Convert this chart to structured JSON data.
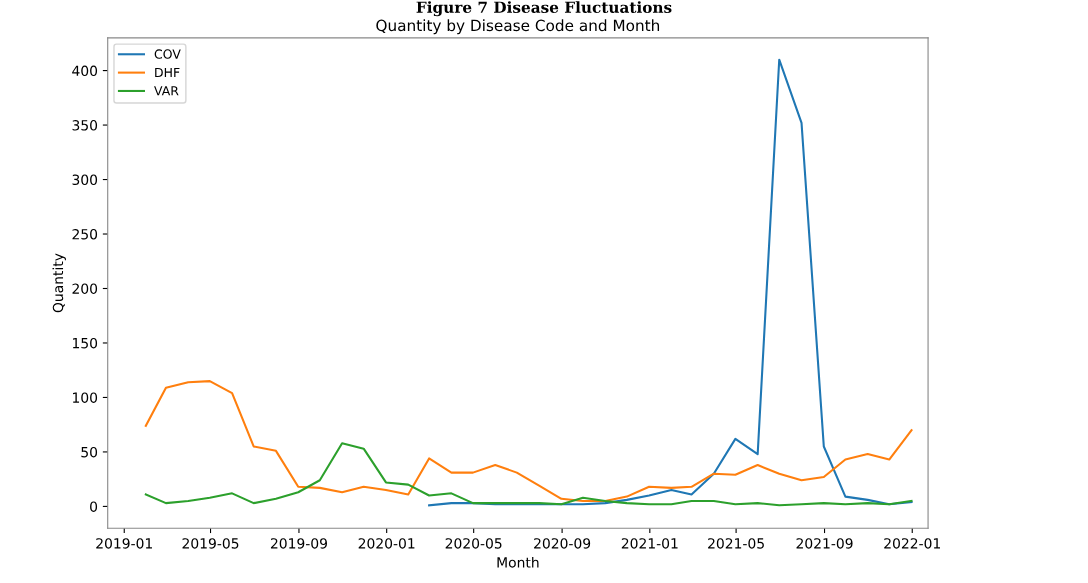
{
  "chart_data": {
    "type": "line",
    "title": "Quantity by Disease Code and Month",
    "xlabel": "Month",
    "ylabel": "Quantity",
    "annotations": [
      "Figure 7 Disease Fluctuations"
    ],
    "x": [
      "2019-01-31",
      "2019-02-28",
      "2019-03-31",
      "2019-04-30",
      "2019-05-31",
      "2019-06-30",
      "2019-07-31",
      "2019-08-31",
      "2019-09-30",
      "2019-10-31",
      "2019-11-30",
      "2019-12-31",
      "2020-01-31",
      "2020-02-29",
      "2020-03-31",
      "2020-04-30",
      "2020-05-31",
      "2020-06-30",
      "2020-07-31",
      "2020-08-31",
      "2020-09-30",
      "2020-10-31",
      "2020-11-30",
      "2020-12-31",
      "2021-01-31",
      "2021-02-28",
      "2021-03-31",
      "2021-04-30",
      "2021-05-31",
      "2021-06-30",
      "2021-07-31",
      "2021-08-31",
      "2021-09-30",
      "2021-10-31",
      "2021-11-30",
      "2021-12-31"
    ],
    "series": [
      {
        "name": "COV",
        "color": "#1f77b4",
        "values": [
          null,
          null,
          null,
          null,
          null,
          null,
          null,
          null,
          null,
          null,
          null,
          null,
          null,
          1,
          3,
          3,
          2,
          2,
          2,
          2,
          2,
          3,
          6,
          10,
          15,
          11,
          30,
          62,
          48,
          410,
          352,
          55,
          9,
          6,
          2,
          4
        ]
      },
      {
        "name": "DHF",
        "color": "#ff7f0e",
        "values": [
          74,
          109,
          114,
          115,
          104,
          55,
          51,
          18,
          17,
          13,
          18,
          15,
          11,
          44,
          31,
          31,
          38,
          31,
          19,
          7,
          5,
          5,
          9,
          18,
          17,
          18,
          30,
          29,
          38,
          30,
          24,
          27,
          43,
          48,
          43,
          70
        ]
      },
      {
        "name": "VAR",
        "color": "#2ca02c",
        "values": [
          11,
          3,
          5,
          8,
          12,
          3,
          7,
          13,
          24,
          58,
          53,
          22,
          20,
          10,
          12,
          3,
          3,
          3,
          3,
          2,
          8,
          5,
          3,
          2,
          2,
          5,
          5,
          2,
          3,
          1,
          2,
          3,
          2,
          3,
          2,
          5
        ]
      }
    ],
    "xlim": [
      "2018-12-09",
      "2022-01-23"
    ],
    "xticks": [
      "2019-01",
      "2019-05",
      "2019-09",
      "2020-01",
      "2020-05",
      "2020-09",
      "2021-01",
      "2021-05",
      "2021-09",
      "2022-01"
    ],
    "ylim": [
      -20,
      430
    ],
    "yticks": [
      0,
      50,
      100,
      150,
      200,
      250,
      300,
      350,
      400
    ],
    "grid": false,
    "legend": "top left",
    "marker": "none",
    "line_style": "solid"
  }
}
